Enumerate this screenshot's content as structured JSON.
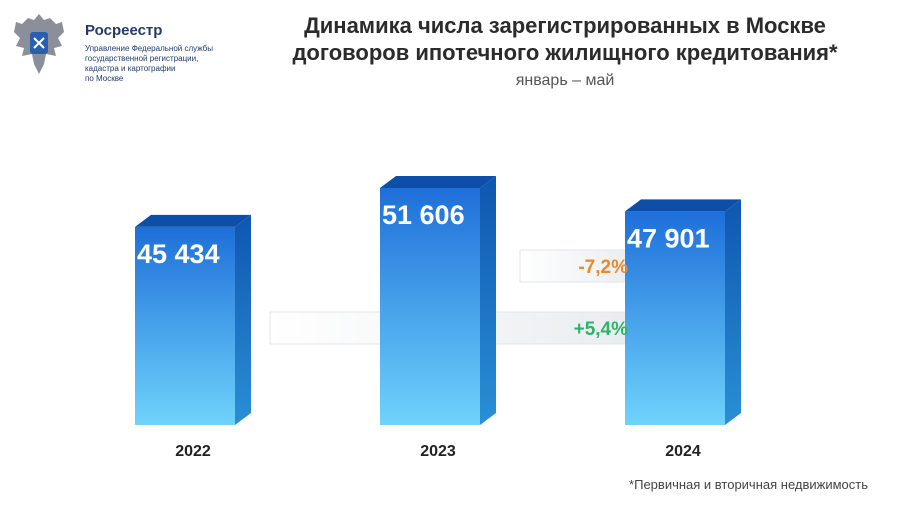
{
  "org": {
    "name": "Росреестр",
    "description": "Управление Федеральной службы\nгосударственной регистрации,\nкадастра и картографии\nпо Москве"
  },
  "chart_data": {
    "type": "bar",
    "title": "Динамика числа зарегистрированных в Москве\nдоговоров ипотечного жилищного кредитования*",
    "subtitle": "январь – май",
    "categories": [
      "2022",
      "2023",
      "2024"
    ],
    "values": [
      45434,
      51606,
      47901
    ],
    "value_labels": [
      "45 434",
      "51 606",
      "47 901"
    ],
    "changes": [
      {
        "from": "2023",
        "to": "2024",
        "label": "-7,2%",
        "color": "#e8892a"
      },
      {
        "from": "2022",
        "to": "2024",
        "label": "+5,4%",
        "color": "#2fb36b"
      }
    ],
    "footnote": "*Первичная и вторичная недвижимость",
    "colors": {
      "bar_top": "#1e6fd9",
      "bar_bottom": "#5ac8f5",
      "bar_side": "#1565b8",
      "bar_cap": "#0d4fa8"
    }
  }
}
